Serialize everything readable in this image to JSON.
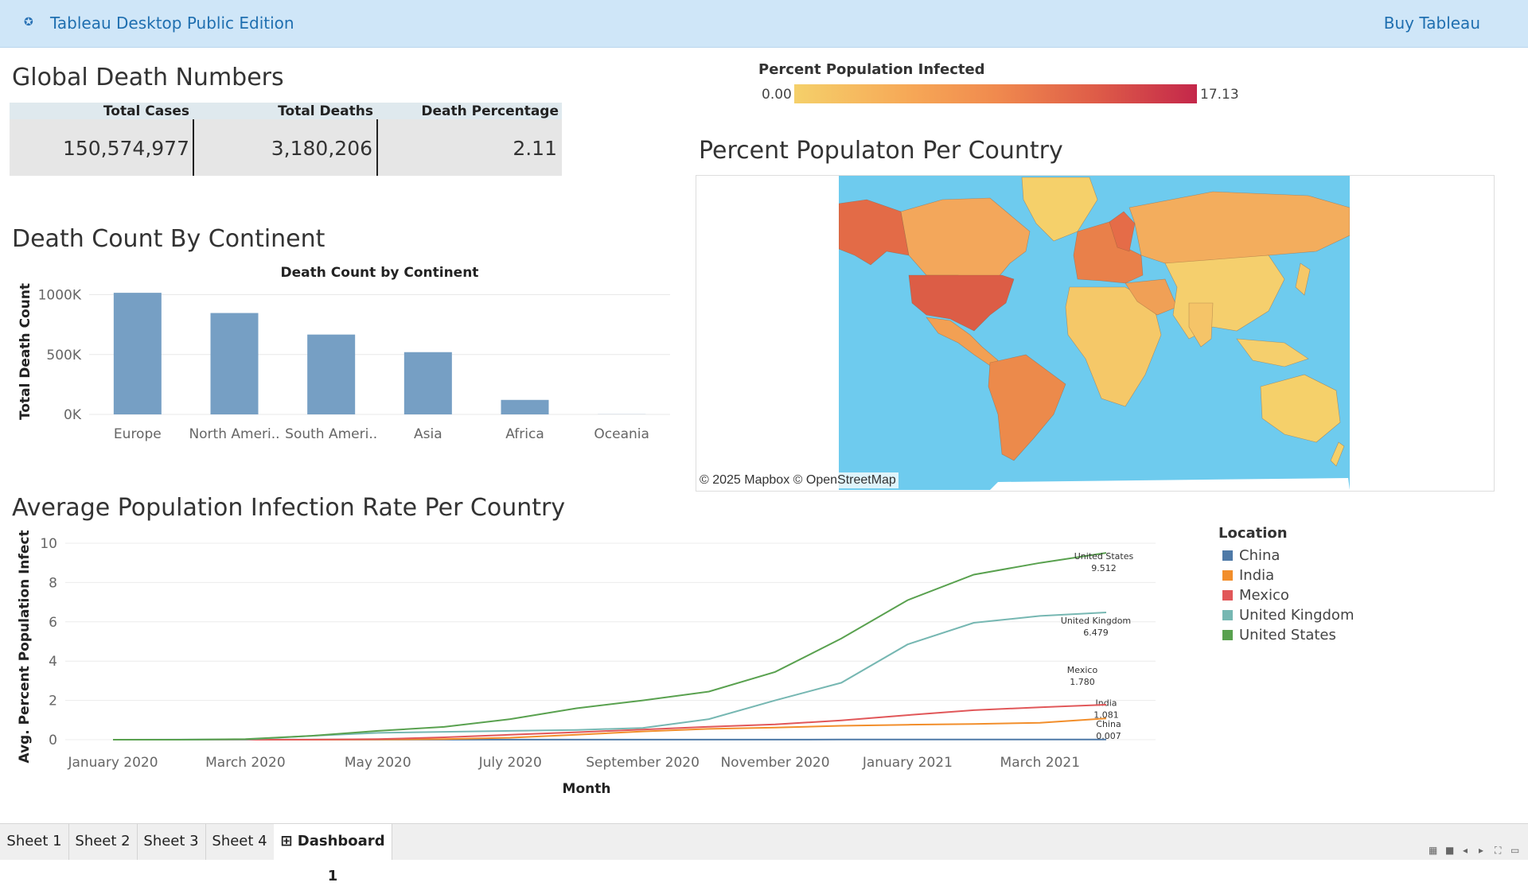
{
  "app": {
    "title": "Tableau Desktop Public Edition",
    "buy_label": "Buy Tableau"
  },
  "kpi": {
    "title": "Global Death Numbers",
    "headers": [
      "Total Cases",
      "Total Deaths",
      "Death Percentage"
    ],
    "values": [
      "150,574,977",
      "3,180,206",
      "2.11"
    ]
  },
  "map": {
    "scale_title": "Percent Population Infected",
    "scale_min": "0.00",
    "scale_max": "17.13",
    "title": "Percent Populaton Per Country",
    "credit": "© 2025 Mapbox © OpenStreetMap",
    "colors": {
      "ocean": "#6ecbee",
      "low": "#f5d06a",
      "mid": "#f08a4e",
      "high": "#c4274a"
    }
  },
  "continent": {
    "section_title": "Death Count By Continent"
  },
  "infection": {
    "section_title": "Average Population Infection Rate Per Country"
  },
  "sheets": {
    "tabs": [
      "Sheet 1",
      "Sheet 2",
      "Sheet 3",
      "Sheet 4",
      "Dashboard 1"
    ],
    "active_index": 4
  },
  "chart_data": [
    {
      "type": "bar",
      "title": "Death Count by Continent",
      "xlabel": "",
      "ylabel": "Total Death Count",
      "categories": [
        "Europe",
        "North Ameri..",
        "South Ameri..",
        "Asia",
        "Africa",
        "Oceania"
      ],
      "values": [
        1016000,
        847000,
        667000,
        520000,
        121000,
        1000
      ],
      "ylim": [
        0,
        1050000
      ],
      "yticks": [
        0,
        500000,
        1000000
      ],
      "ytick_labels": [
        "0K",
        "500K",
        "1000K"
      ],
      "color": "#769fc4",
      "grid": true
    },
    {
      "type": "line",
      "title": "",
      "xlabel": "Month",
      "ylabel": "Avg. Percent Population Infect..",
      "x": [
        "January 2020",
        "February 2020",
        "March 2020",
        "April 2020",
        "May 2020",
        "June 2020",
        "July 2020",
        "August 2020",
        "September 2020",
        "October 2020",
        "November 2020",
        "December 2020",
        "January 2021",
        "February 2021",
        "March 2021",
        "April 2021"
      ],
      "xtick_labels": [
        "January 2020",
        "March 2020",
        "May 2020",
        "July 2020",
        "September 2020",
        "November 2020",
        "January 2021",
        "March 2021"
      ],
      "ylim": [
        0,
        10
      ],
      "yticks": [
        0,
        2,
        4,
        6,
        8,
        10
      ],
      "series": [
        {
          "name": "China",
          "color": "#4e79a7",
          "end_label": "0.007",
          "values": [
            0.001,
            0.005,
            0.006,
            0.006,
            0.006,
            0.006,
            0.006,
            0.006,
            0.006,
            0.006,
            0.006,
            0.007,
            0.007,
            0.007,
            0.007,
            0.007
          ]
        },
        {
          "name": "India",
          "color": "#f28e2b",
          "end_label": "1.081",
          "values": [
            0,
            0,
            0,
            0.001,
            0.01,
            0.03,
            0.1,
            0.25,
            0.42,
            0.55,
            0.62,
            0.71,
            0.76,
            0.8,
            0.86,
            1.081
          ]
        },
        {
          "name": "Mexico",
          "color": "#e15759",
          "end_label": "1.780",
          "values": [
            0,
            0,
            0,
            0.003,
            0.03,
            0.12,
            0.25,
            0.38,
            0.52,
            0.66,
            0.78,
            0.98,
            1.25,
            1.5,
            1.65,
            1.78
          ]
        },
        {
          "name": "United Kingdom",
          "color": "#76b7b2",
          "end_label": "6.479",
          "values": [
            0,
            0,
            0.01,
            0.2,
            0.35,
            0.4,
            0.45,
            0.5,
            0.6,
            1.05,
            2.0,
            2.9,
            4.85,
            5.95,
            6.3,
            6.479
          ]
        },
        {
          "name": "United States",
          "color": "#59a14f",
          "end_label": "9.512",
          "values": [
            0,
            0,
            0.03,
            0.2,
            0.45,
            0.65,
            1.05,
            1.6,
            2.0,
            2.45,
            3.45,
            5.15,
            7.1,
            8.4,
            9.0,
            9.512
          ]
        }
      ],
      "legend_title": "Location",
      "legend_position": "right",
      "grid": true
    }
  ]
}
